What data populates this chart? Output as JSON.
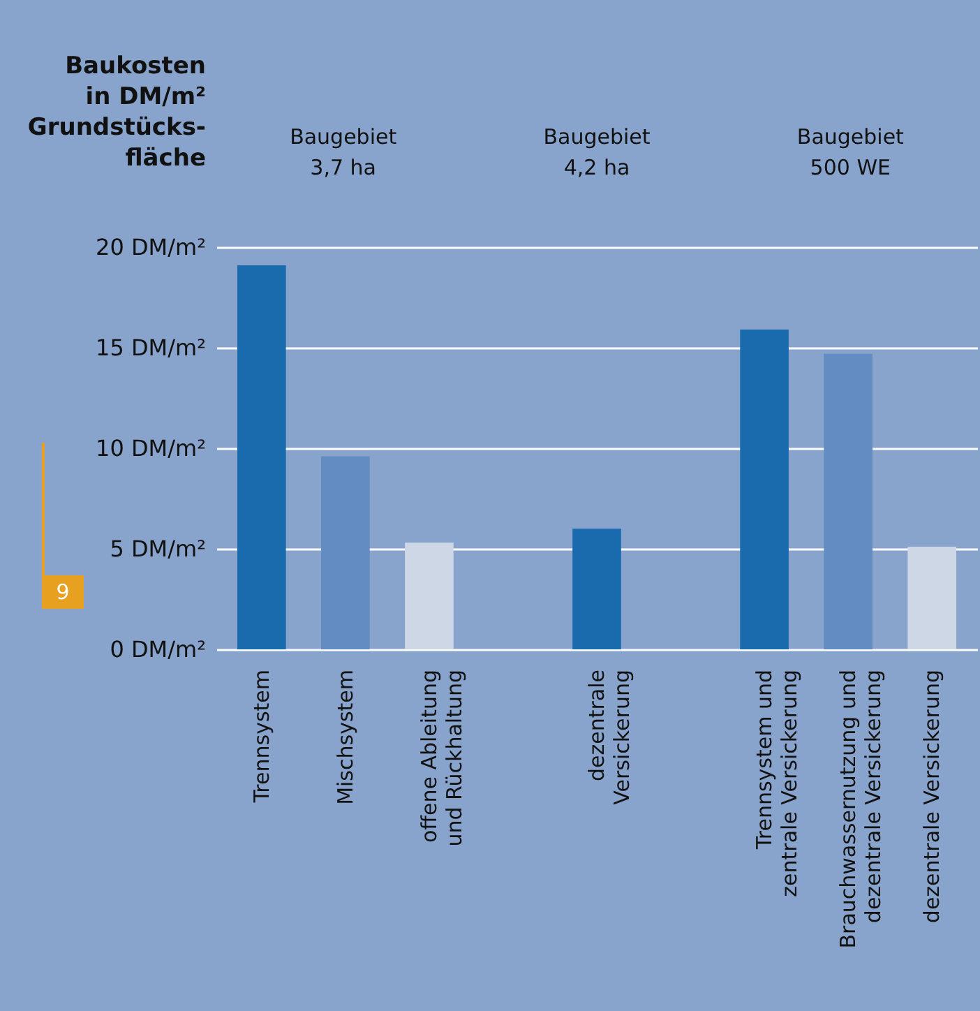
{
  "chart_data": {
    "type": "bar",
    "ylabel": "Baukosten\nin DM/m²\nGrundstücks-\nfläche",
    "categories": [
      "Trennsystem",
      "Mischsystem",
      "offene Ableitung\nund Rückhaltung",
      null,
      "dezentrale\nVersickerung",
      null,
      "Trennsystem und\nzentrale Versickerung",
      "Brauchwassernutzung und\ndezentrale Versickerung",
      "dezentrale Versickerung"
    ],
    "values": [
      19.1,
      9.6,
      5.3,
      null,
      6.0,
      null,
      15.9,
      14.7,
      5.1
    ],
    "colors": [
      "#1a6aae",
      "#628cc2",
      "#cdd7e6",
      "#88a4cc",
      "#1a6aae",
      "#88a4cc",
      "#1a6aae",
      "#628cc2",
      "#cdd7e6"
    ],
    "ylim": [
      0,
      20
    ],
    "yticks": [
      {
        "value": 0,
        "label": "0 DM/m²"
      },
      {
        "value": 5,
        "label": "5 DM/m²"
      },
      {
        "value": 10,
        "label": "10 DM/m²"
      },
      {
        "value": 15,
        "label": "15 DM/m²"
      },
      {
        "value": 20,
        "label": "20 DM/m²"
      }
    ],
    "grid": "y",
    "annotations": [
      "Baugebiet\n3,7 ha",
      "Baugebiet\n4,2 ha",
      "Baugebiet\n500 WE",
      "9"
    ]
  }
}
